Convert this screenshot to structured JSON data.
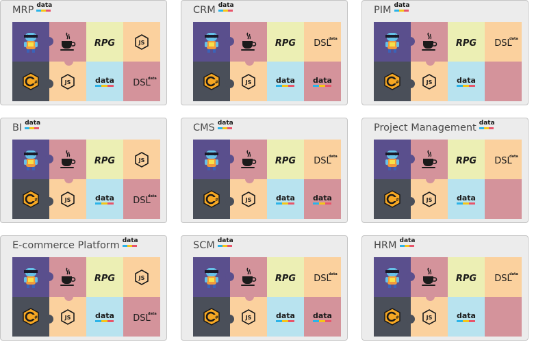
{
  "badge_text": "data",
  "labels": {
    "rpg": "RPG",
    "dsl": "DSL",
    "dsl_sup": "data",
    "data": "data"
  },
  "colors": {
    "purple": "#5a4f8d",
    "rose": "#d4939b",
    "lemon": "#ecefb4",
    "orange": "#fbd19e",
    "slate": "#4a4f59",
    "sky": "#b8e3ef"
  },
  "cards": [
    {
      "title": "MRP",
      "tiles": [
        "mascot",
        "java",
        "rpg",
        "node",
        "csharp",
        "node",
        "data",
        "dsl"
      ]
    },
    {
      "title": "CRM",
      "tiles": [
        "mascot",
        "java",
        "rpg",
        "dsl",
        "csharp",
        "node",
        "data",
        "data"
      ]
    },
    {
      "title": "PIM",
      "tiles": [
        "mascot",
        "java",
        "rpg",
        "dsl",
        "csharp",
        "node",
        "data",
        "empty"
      ]
    },
    {
      "title": "BI",
      "tiles": [
        "mascot",
        "java",
        "rpg",
        "node",
        "csharp",
        "node",
        "data",
        "dsl"
      ]
    },
    {
      "title": "CMS",
      "tiles": [
        "mascot",
        "java",
        "rpg",
        "dsl",
        "csharp",
        "node",
        "data",
        "data"
      ]
    },
    {
      "title": "Project Management",
      "tiles": [
        "mascot",
        "java",
        "rpg",
        "dsl",
        "csharp",
        "node",
        "data",
        "empty"
      ]
    },
    {
      "title": "E-commerce Platform",
      "tiles": [
        "mascot",
        "java",
        "rpg",
        "node",
        "csharp",
        "node",
        "data",
        "dsl"
      ]
    },
    {
      "title": "SCM",
      "tiles": [
        "mascot",
        "java",
        "rpg",
        "dsl",
        "csharp",
        "node",
        "data",
        "data"
      ]
    },
    {
      "title": "HRM",
      "tiles": [
        "mascot",
        "java",
        "rpg",
        "dsl",
        "csharp",
        "node",
        "data",
        "empty"
      ]
    }
  ]
}
